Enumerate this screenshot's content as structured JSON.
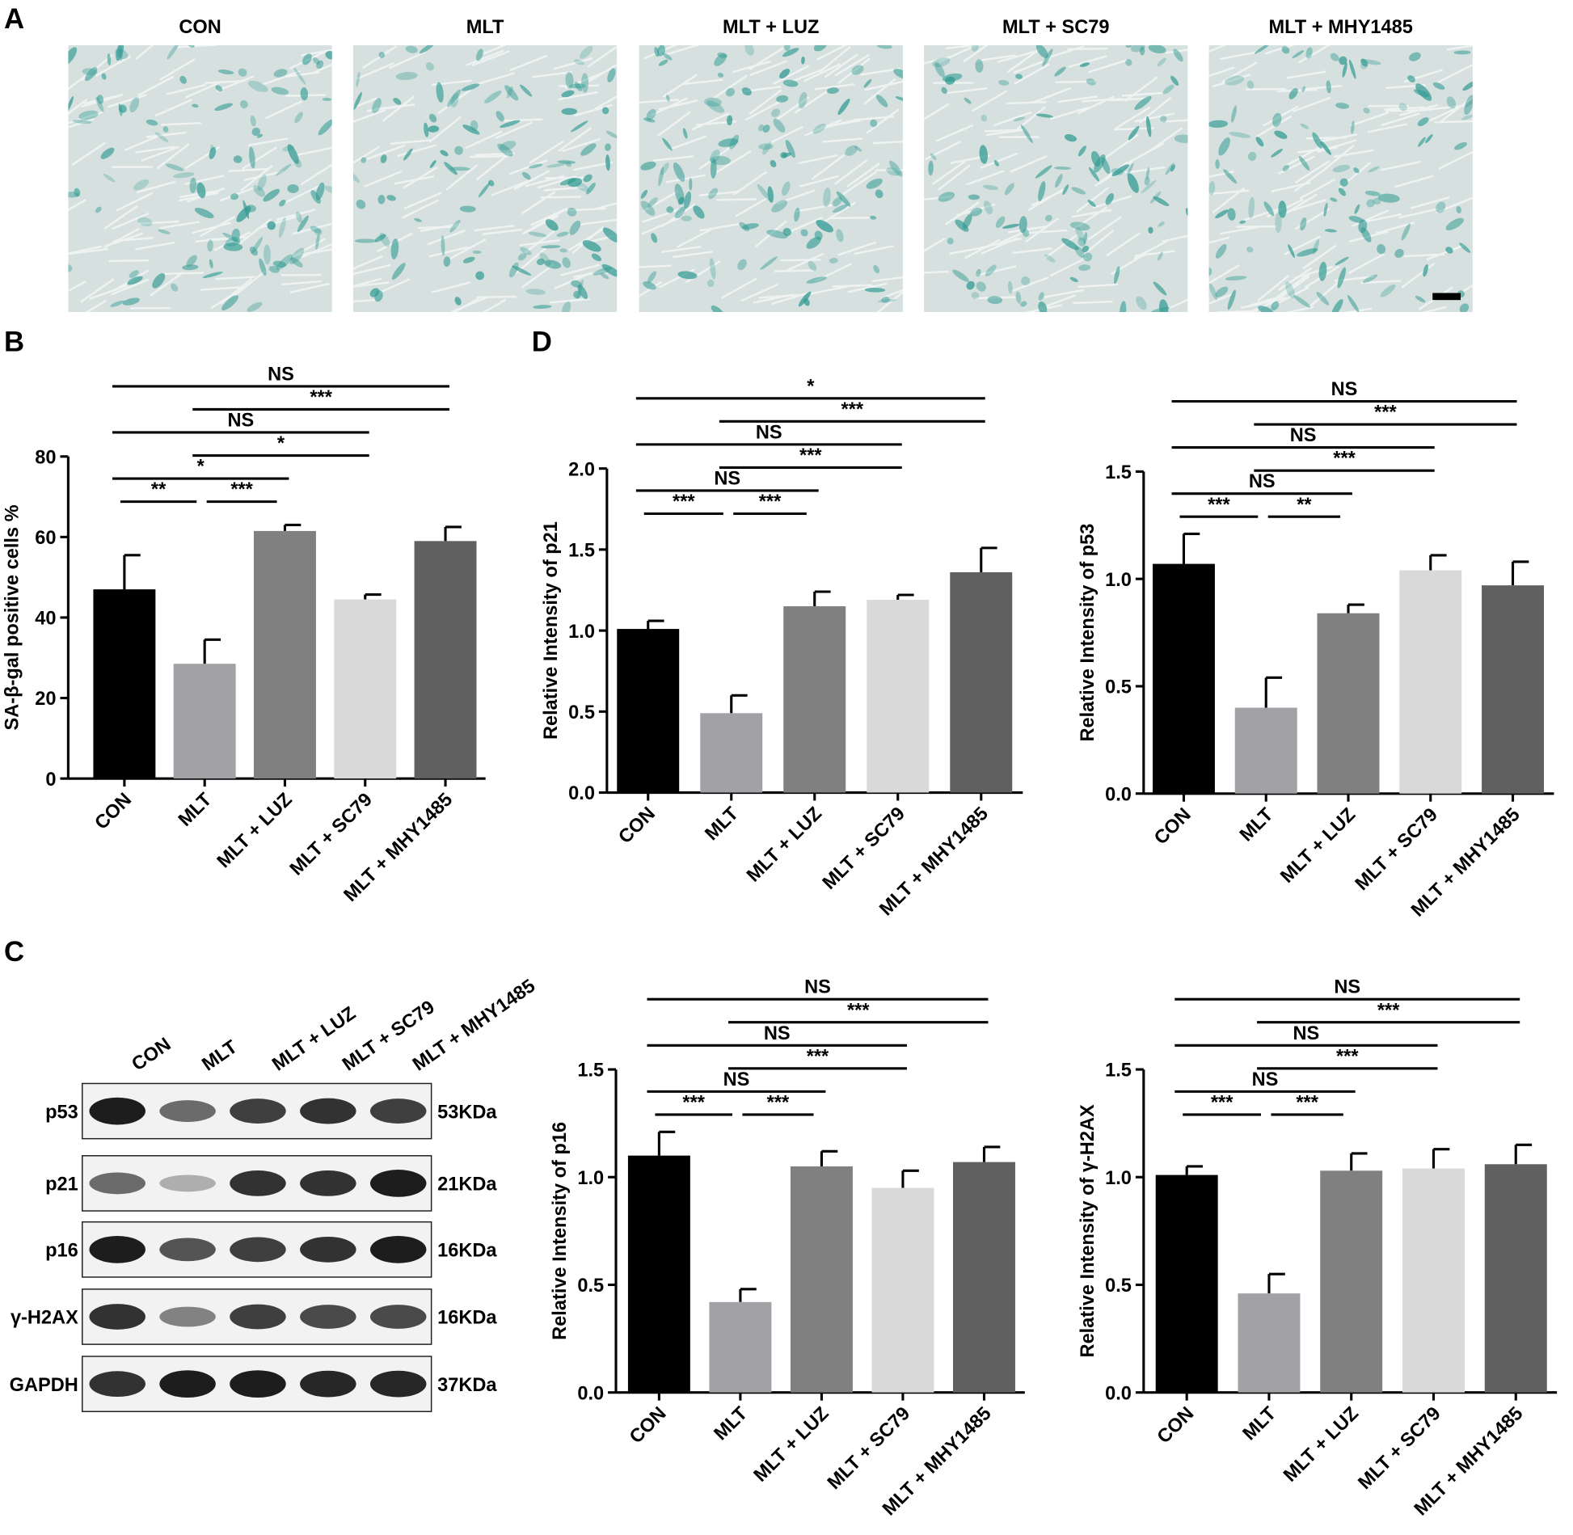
{
  "panels": [
    "A",
    "B",
    "C",
    "D"
  ],
  "images": {
    "titles": [
      "CON",
      "MLT",
      "MLT + LUZ",
      "MLT + SC79",
      "MLT + MHY1485"
    ]
  },
  "blot": {
    "groups": [
      "CON",
      "MLT",
      "MLT + LUZ",
      "MLT + SC79",
      "MLT + MHY1485"
    ],
    "proteins": [
      "p53",
      "p21",
      "p16",
      "γ-H2AX",
      "GAPDH"
    ],
    "sizes": [
      "53KDa",
      "21KDa",
      "16KDa",
      "16KDa",
      "37KDa"
    ]
  },
  "chart_data": [
    {
      "type": "bar",
      "ylabel": "SA-β-gal positive cells %",
      "categories": [
        "CON",
        "MLT",
        "MLT + LUZ",
        "MLT + SC79",
        "MLT + MHY1485"
      ],
      "values": [
        47,
        28.5,
        61.5,
        44.5,
        59
      ],
      "errors": [
        8.5,
        6,
        1.5,
        1.2,
        3.5
      ],
      "colors": [
        "#000000",
        "#a1a1a6",
        "#808080",
        "#d9d9d9",
        "#606060"
      ],
      "ylim": [
        0,
        80
      ],
      "yticks": [
        0,
        20,
        40,
        60,
        80
      ],
      "comparisons": [
        {
          "groups": [
            0,
            1
          ],
          "label": "**"
        },
        {
          "groups": [
            1,
            2
          ],
          "label": "***"
        },
        {
          "groups": [
            0,
            2
          ],
          "label": "*"
        },
        {
          "groups": [
            1,
            3
          ],
          "label": "*"
        },
        {
          "groups": [
            0,
            3
          ],
          "label": "NS"
        },
        {
          "groups": [
            1,
            4
          ],
          "label": "***"
        },
        {
          "groups": [
            0,
            4
          ],
          "label": "NS"
        }
      ]
    },
    {
      "type": "bar",
      "ylabel": "Relative Intensity of p21",
      "categories": [
        "CON",
        "MLT",
        "MLT + LUZ",
        "MLT + SC79",
        "MLT + MHY1485"
      ],
      "values": [
        1.01,
        0.49,
        1.15,
        1.19,
        1.36
      ],
      "errors": [
        0.05,
        0.11,
        0.09,
        0.03,
        0.15
      ],
      "colors": [
        "#000000",
        "#a1a1a6",
        "#808080",
        "#d9d9d9",
        "#606060"
      ],
      "ylim": [
        0,
        2
      ],
      "yticks": [
        {
          "value": 0,
          "label": "0.0"
        },
        0.5,
        {
          "value": 1,
          "label": "1.0"
        },
        1.5,
        {
          "value": 2,
          "label": "2.0"
        }
      ],
      "comparisons": [
        {
          "groups": [
            0,
            1
          ],
          "label": "***"
        },
        {
          "groups": [
            1,
            2
          ],
          "label": "***"
        },
        {
          "groups": [
            0,
            2
          ],
          "label": "NS"
        },
        {
          "groups": [
            1,
            3
          ],
          "label": "***"
        },
        {
          "groups": [
            0,
            3
          ],
          "label": "NS"
        },
        {
          "groups": [
            1,
            4
          ],
          "label": "***"
        },
        {
          "groups": [
            0,
            4
          ],
          "label": "*"
        }
      ]
    },
    {
      "type": "bar",
      "ylabel": "Relative Intensity of p53",
      "categories": [
        "CON",
        "MLT",
        "MLT + LUZ",
        "MLT + SC79",
        "MLT + MHY1485"
      ],
      "values": [
        1.07,
        0.4,
        0.84,
        1.04,
        0.97
      ],
      "errors": [
        0.14,
        0.14,
        0.04,
        0.07,
        0.11
      ],
      "colors": [
        "#000000",
        "#a1a1a6",
        "#808080",
        "#d9d9d9",
        "#606060"
      ],
      "ylim": [
        0,
        1.5
      ],
      "yticks": [
        {
          "value": 0,
          "label": "0.0"
        },
        0.5,
        {
          "value": 1,
          "label": "1.0"
        },
        1.5
      ],
      "comparisons": [
        {
          "groups": [
            0,
            1
          ],
          "label": "***"
        },
        {
          "groups": [
            1,
            2
          ],
          "label": "**"
        },
        {
          "groups": [
            0,
            2
          ],
          "label": "NS"
        },
        {
          "groups": [
            1,
            3
          ],
          "label": "***"
        },
        {
          "groups": [
            0,
            3
          ],
          "label": "NS"
        },
        {
          "groups": [
            1,
            4
          ],
          "label": "***"
        },
        {
          "groups": [
            0,
            4
          ],
          "label": "NS"
        }
      ]
    },
    {
      "type": "bar",
      "ylabel": "Relative Intensity of p16",
      "categories": [
        "CON",
        "MLT",
        "MLT + LUZ",
        "MLT + SC79",
        "MLT + MHY1485"
      ],
      "values": [
        1.1,
        0.42,
        1.05,
        0.95,
        1.07
      ],
      "errors": [
        0.11,
        0.06,
        0.07,
        0.08,
        0.07
      ],
      "colors": [
        "#000000",
        "#a1a1a6",
        "#808080",
        "#d9d9d9",
        "#606060"
      ],
      "ylim": [
        0,
        1.5
      ],
      "yticks": [
        {
          "value": 0,
          "label": "0.0"
        },
        0.5,
        {
          "value": 1,
          "label": "1.0"
        },
        1.5
      ],
      "comparisons": [
        {
          "groups": [
            0,
            1
          ],
          "label": "***"
        },
        {
          "groups": [
            1,
            2
          ],
          "label": "***"
        },
        {
          "groups": [
            0,
            2
          ],
          "label": "NS"
        },
        {
          "groups": [
            1,
            3
          ],
          "label": "***"
        },
        {
          "groups": [
            0,
            3
          ],
          "label": "NS"
        },
        {
          "groups": [
            1,
            4
          ],
          "label": "***"
        },
        {
          "groups": [
            0,
            4
          ],
          "label": "NS"
        }
      ]
    },
    {
      "type": "bar",
      "ylabel": "Relative Intensity of γ-H2AX",
      "categories": [
        "CON",
        "MLT",
        "MLT + LUZ",
        "MLT + SC79",
        "MLT + MHY1485"
      ],
      "values": [
        1.01,
        0.46,
        1.03,
        1.04,
        1.06
      ],
      "errors": [
        0.04,
        0.09,
        0.08,
        0.09,
        0.09
      ],
      "colors": [
        "#000000",
        "#a1a1a6",
        "#808080",
        "#d9d9d9",
        "#606060"
      ],
      "ylim": [
        0,
        1.5
      ],
      "yticks": [
        {
          "value": 0,
          "label": "0.0"
        },
        0.5,
        {
          "value": 1,
          "label": "1.0"
        },
        1.5
      ],
      "comparisons": [
        {
          "groups": [
            0,
            1
          ],
          "label": "***"
        },
        {
          "groups": [
            1,
            2
          ],
          "label": "***"
        },
        {
          "groups": [
            0,
            2
          ],
          "label": "NS"
        },
        {
          "groups": [
            1,
            3
          ],
          "label": "***"
        },
        {
          "groups": [
            0,
            3
          ],
          "label": "NS"
        },
        {
          "groups": [
            1,
            4
          ],
          "label": "***"
        },
        {
          "groups": [
            0,
            4
          ],
          "label": "NS"
        }
      ]
    }
  ]
}
